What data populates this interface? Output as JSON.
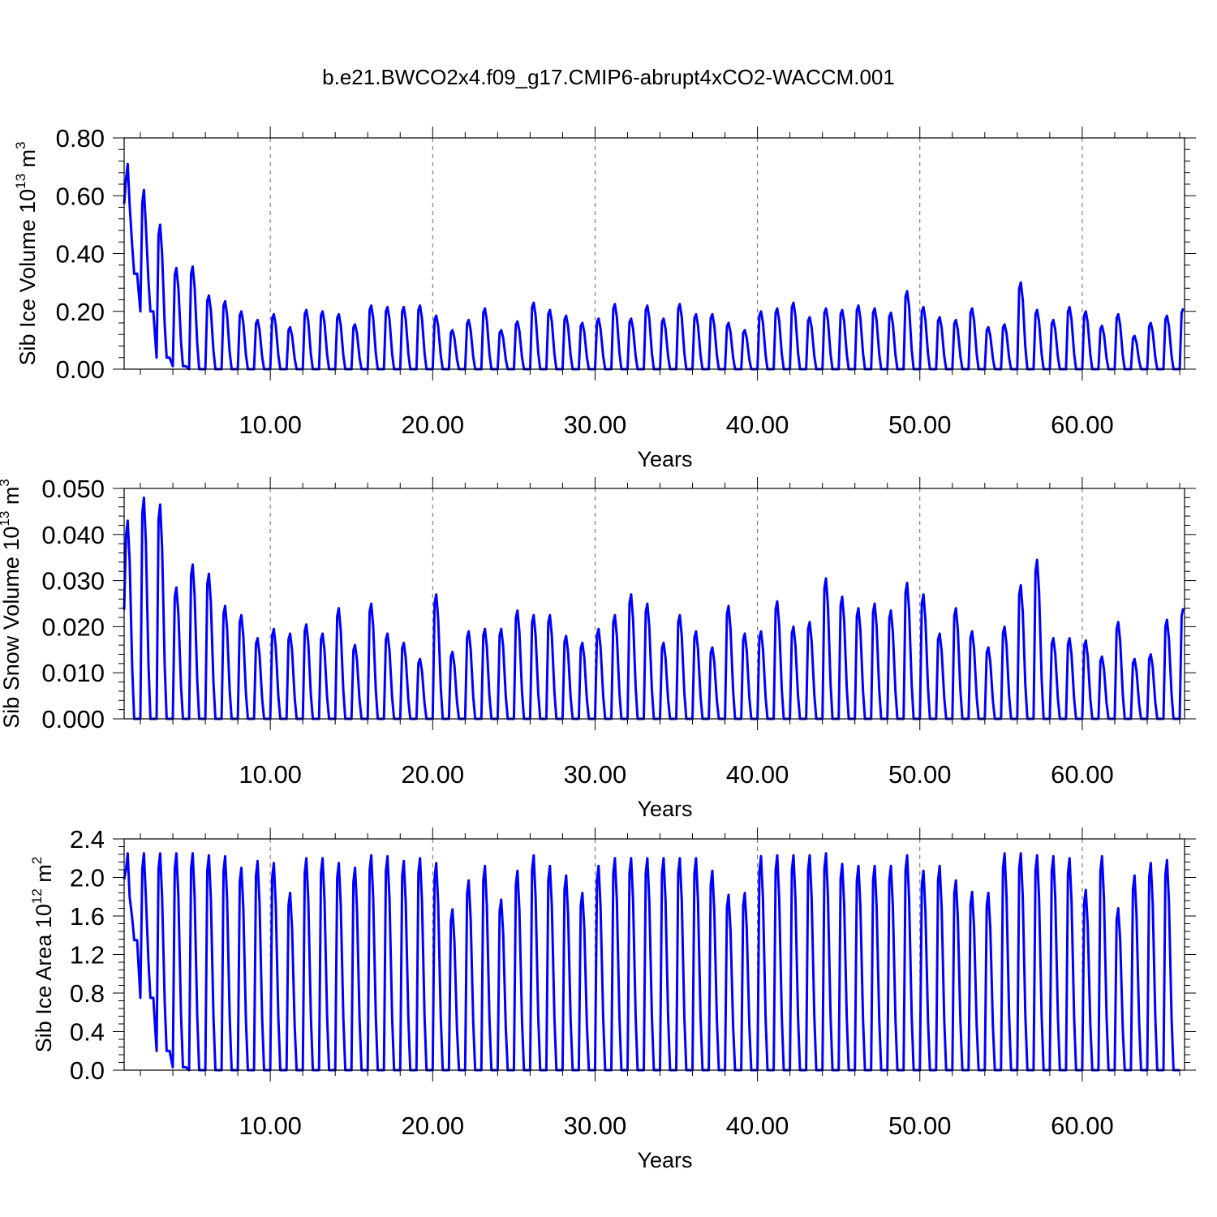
{
  "title": "b.e21.BWCO2x4.f09_g17.CMIP6-abrupt4xCO2-WACCM.001",
  "colors": {
    "series": "#0000ff",
    "axis": "#000000",
    "grid": "#666666"
  },
  "chart_data": [
    {
      "type": "line",
      "ylabel": {
        "prefix": "Sib Ice Volume 10",
        "sup": "13",
        "unit": " m",
        "unit_sup": "3"
      },
      "xlabel": "Years",
      "xlim": [
        1,
        66.3
      ],
      "ylim": [
        0,
        0.8
      ],
      "xticks": [
        10,
        20,
        30,
        40,
        50,
        60
      ],
      "xtick_labels": [
        "10.00",
        "20.00",
        "30.00",
        "40.00",
        "50.00",
        "60.00"
      ],
      "yticks": [
        0,
        0.2,
        0.4,
        0.6,
        0.8
      ],
      "ytick_labels": [
        "0.00",
        "0.20",
        "0.40",
        "0.60",
        "0.80"
      ],
      "grid": "vertical dashed at x ticks",
      "series": [
        {
          "start_year": 1.0,
          "annual_max": [
            0.71,
            0.62,
            0.5,
            0.35,
            0.355,
            0.255,
            0.235,
            0.2,
            0.17,
            0.19,
            0.145,
            0.205,
            0.2,
            0.19,
            0.155,
            0.22,
            0.215,
            0.215,
            0.22,
            0.185,
            0.135,
            0.17,
            0.21,
            0.135,
            0.165,
            0.23,
            0.205,
            0.185,
            0.16,
            0.175,
            0.225,
            0.175,
            0.22,
            0.175,
            0.225,
            0.19,
            0.19,
            0.16,
            0.135,
            0.2,
            0.21,
            0.23,
            0.18,
            0.21,
            0.205,
            0.22,
            0.21,
            0.195,
            0.27,
            0.215,
            0.18,
            0.17,
            0.21,
            0.145,
            0.155,
            0.3,
            0.205,
            0.17,
            0.215,
            0.2,
            0.15,
            0.19,
            0.115,
            0.16,
            0.185,
            0.21
          ],
          "annual_min": [
            0.33,
            0.2,
            0.04,
            0.01,
            0.0,
            0.0,
            0.0,
            0.0,
            0.0,
            0.0,
            0.0,
            0.0,
            0.0,
            0.0,
            0.0,
            0.0,
            0.0,
            0.0,
            0.0,
            0.0,
            0.0,
            0.0,
            0.0,
            0.0,
            0.0,
            0.0,
            0.0,
            0.0,
            0.0,
            0.0,
            0.0,
            0.0,
            0.0,
            0.0,
            0.0,
            0.0,
            0.0,
            0.0,
            0.0,
            0.0,
            0.0,
            0.0,
            0.0,
            0.0,
            0.0,
            0.0,
            0.0,
            0.0,
            0.0,
            0.0,
            0.0,
            0.0,
            0.0,
            0.0,
            0.0,
            0.0,
            0.0,
            0.0,
            0.0,
            0.0,
            0.0,
            0.0,
            0.0,
            0.0,
            0.0,
            0.0
          ]
        }
      ]
    },
    {
      "type": "line",
      "ylabel": {
        "prefix": "Sib Snow Volume 10",
        "sup": "13",
        "unit": " m",
        "unit_sup": "3"
      },
      "xlabel": "Years",
      "xlim": [
        1,
        66.3
      ],
      "ylim": [
        0,
        0.05
      ],
      "xticks": [
        10,
        20,
        30,
        40,
        50,
        60
      ],
      "xtick_labels": [
        "10.00",
        "20.00",
        "30.00",
        "40.00",
        "50.00",
        "60.00"
      ],
      "yticks": [
        0,
        0.01,
        0.02,
        0.03,
        0.04,
        0.05
      ],
      "ytick_labels": [
        "0.000",
        "0.010",
        "0.020",
        "0.030",
        "0.040",
        "0.050"
      ],
      "grid": "vertical dashed at x ticks",
      "series": [
        {
          "start_year": 1.0,
          "annual_max": [
            0.043,
            0.048,
            0.0465,
            0.0285,
            0.0335,
            0.0315,
            0.0245,
            0.0225,
            0.0175,
            0.0195,
            0.0185,
            0.0205,
            0.0185,
            0.024,
            0.016,
            0.025,
            0.0185,
            0.0165,
            0.013,
            0.027,
            0.0145,
            0.019,
            0.0195,
            0.0195,
            0.0235,
            0.0225,
            0.0225,
            0.018,
            0.0165,
            0.0195,
            0.0225,
            0.027,
            0.025,
            0.0165,
            0.0225,
            0.019,
            0.0155,
            0.0245,
            0.0185,
            0.019,
            0.0255,
            0.02,
            0.021,
            0.0305,
            0.0265,
            0.024,
            0.025,
            0.0235,
            0.0295,
            0.027,
            0.0185,
            0.024,
            0.019,
            0.0155,
            0.02,
            0.029,
            0.0345,
            0.0175,
            0.0175,
            0.017,
            0.0135,
            0.021,
            0.013,
            0.014,
            0.0215,
            0.024
          ],
          "annual_min": [
            0.0,
            0.0,
            0.0,
            0.0,
            0.0,
            0.0,
            0.0,
            0.0,
            0.0,
            0.0,
            0.0,
            0.0,
            0.0,
            0.0,
            0.0,
            0.0,
            0.0,
            0.0,
            0.0,
            0.0,
            0.0,
            0.0,
            0.0,
            0.0,
            0.0,
            0.0,
            0.0,
            0.0,
            0.0,
            0.0,
            0.0,
            0.0,
            0.0,
            0.0,
            0.0,
            0.0,
            0.0,
            0.0,
            0.0,
            0.0,
            0.0,
            0.0,
            0.0,
            0.0,
            0.0,
            0.0,
            0.0,
            0.0,
            0.0,
            0.0,
            0.0,
            0.0,
            0.0,
            0.0,
            0.0,
            0.0,
            0.0,
            0.0,
            0.0,
            0.0,
            0.0,
            0.0,
            0.0,
            0.0,
            0.0,
            0.0
          ]
        }
      ]
    },
    {
      "type": "line",
      "ylabel": {
        "prefix": "Sib Ice Area 10",
        "sup": "12",
        "unit": " m",
        "unit_sup": "2"
      },
      "xlabel": "Years",
      "xlim": [
        1,
        66.3
      ],
      "ylim": [
        0,
        2.4
      ],
      "xticks": [
        10,
        20,
        30,
        40,
        50,
        60
      ],
      "xtick_labels": [
        "10.00",
        "20.00",
        "30.00",
        "40.00",
        "50.00",
        "60.00"
      ],
      "yticks": [
        0,
        0.4,
        0.8,
        1.2,
        1.6,
        2.0,
        2.4
      ],
      "ytick_labels": [
        "0.0",
        "0.4",
        "0.8",
        "1.2",
        "1.6",
        "2.0",
        "2.4"
      ],
      "grid": "vertical dashed at x ticks",
      "series": [
        {
          "start_year": 1.0,
          "annual_max": [
            2.25,
            2.25,
            2.25,
            2.25,
            2.25,
            2.23,
            2.22,
            2.1,
            2.17,
            2.15,
            1.84,
            2.2,
            2.2,
            2.15,
            2.1,
            2.23,
            2.22,
            2.17,
            2.2,
            2.15,
            1.67,
            1.97,
            2.12,
            1.77,
            2.07,
            2.23,
            2.12,
            2.02,
            1.84,
            2.12,
            2.2,
            2.2,
            2.2,
            2.2,
            2.2,
            2.2,
            2.07,
            1.82,
            1.84,
            2.22,
            2.23,
            2.23,
            2.23,
            2.25,
            2.14,
            2.12,
            2.12,
            2.12,
            2.23,
            2.07,
            2.12,
            1.97,
            1.85,
            1.84,
            2.25,
            2.25,
            2.23,
            2.22,
            2.2,
            1.87,
            2.22,
            1.68,
            2.02,
            2.15,
            2.18
          ],
          "annual_min": [
            1.35,
            0.75,
            0.2,
            0.03,
            0.0,
            0.0,
            0.0,
            0.0,
            0.0,
            0.0,
            0.0,
            0.0,
            0.0,
            0.0,
            0.0,
            0.0,
            0.0,
            0.0,
            0.0,
            0.0,
            0.0,
            0.0,
            0.0,
            0.0,
            0.0,
            0.0,
            0.0,
            0.0,
            0.0,
            0.0,
            0.0,
            0.0,
            0.0,
            0.0,
            0.0,
            0.0,
            0.0,
            0.0,
            0.0,
            0.0,
            0.0,
            0.0,
            0.0,
            0.0,
            0.0,
            0.0,
            0.0,
            0.0,
            0.0,
            0.0,
            0.0,
            0.0,
            0.0,
            0.0,
            0.0,
            0.0,
            0.0,
            0.0,
            0.0,
            0.0,
            0.0,
            0.0,
            0.0,
            0.0,
            0.0
          ]
        }
      ]
    }
  ]
}
